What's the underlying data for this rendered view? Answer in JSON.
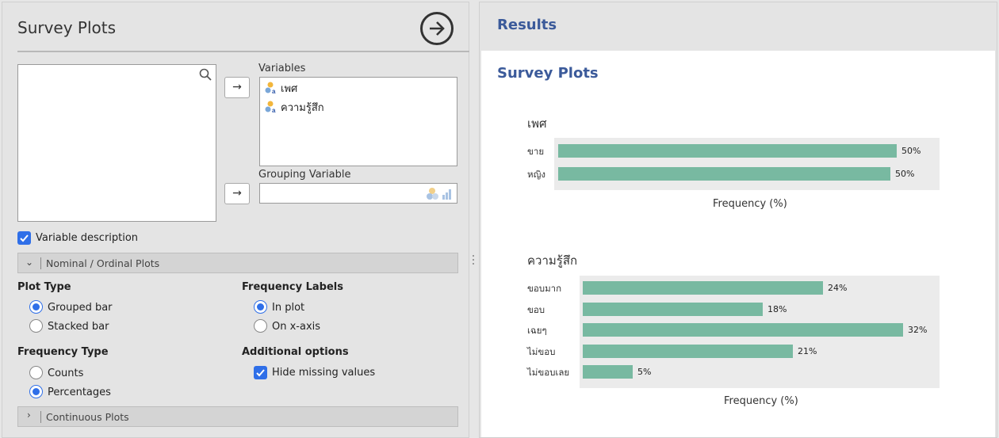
{
  "options": {
    "title": "Survey Plots",
    "variables_label": "Variables",
    "variables": [
      "เพศ",
      "ความรู้สึก"
    ],
    "grouping_label": "Grouping Variable",
    "variable_description": "Variable description",
    "nominal_section": "Nominal / Ordinal Plots",
    "plot_type": {
      "title": "Plot Type",
      "options": [
        "Grouped bar",
        "Stacked bar"
      ],
      "selected": "Grouped bar"
    },
    "frequency_labels": {
      "title": "Frequency Labels",
      "options": [
        "In plot",
        "On x-axis"
      ],
      "selected": "In plot"
    },
    "frequency_type": {
      "title": "Frequency Type",
      "options": [
        "Counts",
        "Percentages"
      ],
      "selected": "Percentages"
    },
    "additional_options": {
      "title": "Additional options",
      "hide_missing": "Hide missing values"
    },
    "continuous_section": "Continuous Plots",
    "arrow_glyph": "→"
  },
  "results": {
    "title": "Results",
    "subtitle": "Survey Plots"
  },
  "colors": {
    "bar": "#78b9a1",
    "accent": "#2f6fe8",
    "heading": "#3b5a9a"
  },
  "chart_data": [
    {
      "type": "bar",
      "orientation": "horizontal",
      "title": "เพศ",
      "categories": [
        "ขาย",
        "หญิง"
      ],
      "values": [
        50.5,
        49.5
      ],
      "labels": [
        "50%",
        "50%"
      ],
      "xlabel": "Frequency (%)"
    },
    {
      "type": "bar",
      "orientation": "horizontal",
      "title": "ความรู้สึก",
      "categories": [
        "ขอบมาก",
        "ขอบ",
        "เฉยๆ",
        "ไม่ขอบ",
        "ไม่ขอบเลย"
      ],
      "values": [
        24,
        18,
        32,
        21,
        5
      ],
      "labels": [
        "24%",
        "18%",
        "32%",
        "21%",
        "5%"
      ],
      "xlabel": "Frequency (%)"
    }
  ]
}
